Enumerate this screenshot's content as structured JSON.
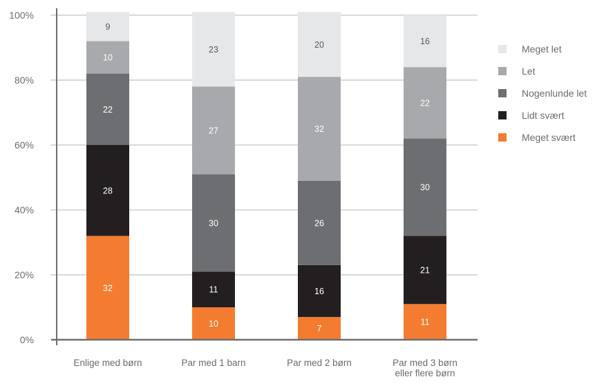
{
  "chart_data": {
    "type": "bar",
    "stacked": true,
    "title": "",
    "xlabel": "",
    "ylabel": "",
    "ylim": [
      0,
      100
    ],
    "yticks": [
      "0%",
      "20%",
      "40%",
      "60%",
      "80%",
      "100%"
    ],
    "grid": true,
    "legend_position": "right",
    "categories": [
      [
        "Enlige med børn"
      ],
      [
        "Par med 1 barn"
      ],
      [
        "Par med 2 børn"
      ],
      [
        "Par med 3 børn",
        "eller flere børn"
      ]
    ],
    "series": [
      {
        "name": "Meget svært",
        "color": "#f47c30",
        "values": [
          32,
          10,
          7,
          11
        ]
      },
      {
        "name": "Lidt svært",
        "color": "#231f20",
        "values": [
          28,
          11,
          16,
          21
        ]
      },
      {
        "name": "Nogenlunde let",
        "color": "#6d6e71",
        "values": [
          22,
          30,
          26,
          30
        ]
      },
      {
        "name": "Let",
        "color": "#a7a9ac",
        "values": [
          10,
          27,
          32,
          22
        ]
      },
      {
        "name": "Meget let",
        "color": "#e6e7e8",
        "values": [
          9,
          23,
          20,
          16
        ]
      }
    ],
    "legend_order": [
      "Meget let",
      "Let",
      "Nogenlunde let",
      "Lidt svært",
      "Meget svært"
    ]
  }
}
